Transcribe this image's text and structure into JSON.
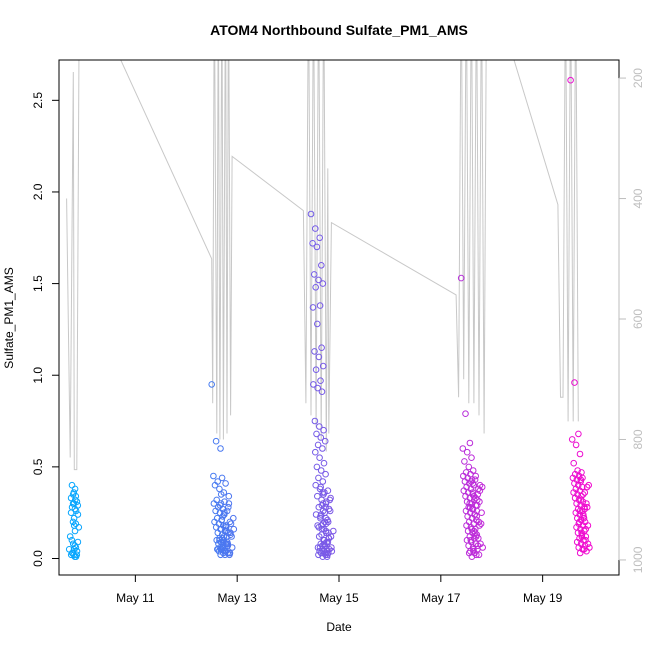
{
  "chart_data": {
    "type": "scatter",
    "title": "ATOM4 Northbound Sulfate_PM1_AMS",
    "xlabel": "Date",
    "ylabel": "Sulfate_PM1_AMS",
    "x_unit": "day of May",
    "xlim": [
      9.5,
      20.5
    ],
    "ylim": [
      -0.09,
      2.72
    ],
    "x_ticks": [
      {
        "value": 11,
        "label": "May 11"
      },
      {
        "value": 13,
        "label": "May 13"
      },
      {
        "value": 15,
        "label": "May 15"
      },
      {
        "value": 17,
        "label": "May 17"
      },
      {
        "value": 19,
        "label": "May 19"
      }
    ],
    "y_ticks": [
      {
        "value": 0.0,
        "label": "0.0"
      },
      {
        "value": 0.5,
        "label": "0.5"
      },
      {
        "value": 1.0,
        "label": "1.0"
      },
      {
        "value": 1.5,
        "label": "1.5"
      },
      {
        "value": 2.0,
        "label": "2.0"
      },
      {
        "value": 2.5,
        "label": "2.5"
      }
    ],
    "right_axis": {
      "description": "secondary reversed axis (gray trace)",
      "range_top": 170,
      "range_bottom": 1025,
      "ticks": [
        {
          "value": 200,
          "label": "200"
        },
        {
          "value": 400,
          "label": "400"
        },
        {
          "value": 600,
          "label": "600"
        },
        {
          "value": 800,
          "label": "800"
        },
        {
          "value": 1000,
          "label": "1000"
        }
      ],
      "color": "#bebebe"
    },
    "point_color_start": "#00aaff",
    "point_color_end": "#ff00cc",
    "clusters": [
      {
        "x_start": 9.7,
        "x_end": 9.9,
        "values": [
          0.05,
          0.02,
          0.08,
          0.12,
          0.03,
          0.18,
          0.25,
          0.3,
          0.32,
          0.28,
          0.22,
          0.33,
          0.35,
          0.38,
          0.4,
          0.3,
          0.26,
          0.2,
          0.15,
          0.1,
          0.05,
          0.01,
          0.03,
          0.07,
          0.04,
          0.02,
          0.06,
          0.09,
          0.27,
          0.31,
          0.36,
          0.34,
          0.24,
          0.01,
          0.02,
          0.17,
          0.19,
          0.29
        ]
      },
      {
        "x_start": 12.5,
        "x_end": 12.95,
        "values": [
          0.95,
          0.64,
          0.6,
          0.45,
          0.42,
          0.44,
          0.4,
          0.38,
          0.36,
          0.32,
          0.3,
          0.3,
          0.28,
          0.27,
          0.26,
          0.25,
          0.24,
          0.22,
          0.21,
          0.2,
          0.19,
          0.18,
          0.17,
          0.16,
          0.15,
          0.14,
          0.13,
          0.12,
          0.11,
          0.1,
          0.1,
          0.09,
          0.08,
          0.08,
          0.07,
          0.07,
          0.06,
          0.06,
          0.05,
          0.05,
          0.04,
          0.04,
          0.03,
          0.03,
          0.02,
          0.02,
          0.05,
          0.06,
          0.08,
          0.1,
          0.12,
          0.14,
          0.16,
          0.18,
          0.2,
          0.23,
          0.26,
          0.29,
          0.31,
          0.34,
          0.21,
          0.17,
          0.13,
          0.09,
          0.07,
          0.05,
          0.04,
          0.03,
          0.11,
          0.15,
          0.19,
          0.24,
          0.28,
          0.35,
          0.41,
          0.03,
          0.06,
          0.09,
          0.12,
          0.25,
          0.3,
          0.22,
          0.18,
          0.14,
          0.1,
          0.08,
          0.06,
          0.04,
          0.02,
          0.16
        ]
      },
      {
        "x_start": 14.45,
        "x_end": 14.9,
        "values": [
          1.88,
          1.8,
          1.75,
          1.72,
          1.7,
          1.6,
          1.55,
          1.52,
          1.5,
          1.48,
          1.38,
          1.37,
          1.28,
          1.15,
          1.13,
          1.1,
          1.05,
          1.03,
          0.97,
          0.95,
          0.93,
          0.91,
          0.75,
          0.72,
          0.7,
          0.68,
          0.66,
          0.64,
          0.62,
          0.6,
          0.58,
          0.55,
          0.52,
          0.5,
          0.48,
          0.46,
          0.44,
          0.42,
          0.4,
          0.38,
          0.36,
          0.34,
          0.32,
          0.3,
          0.28,
          0.26,
          0.24,
          0.22,
          0.2,
          0.18,
          0.16,
          0.14,
          0.12,
          0.1,
          0.09,
          0.08,
          0.07,
          0.06,
          0.05,
          0.05,
          0.04,
          0.04,
          0.03,
          0.03,
          0.02,
          0.02,
          0.01,
          0.01,
          0.06,
          0.08,
          0.11,
          0.13,
          0.15,
          0.17,
          0.19,
          0.21,
          0.23,
          0.25,
          0.27,
          0.29,
          0.31,
          0.33,
          0.35,
          0.37,
          0.39,
          0.03,
          0.05,
          0.07,
          0.09,
          0.12,
          0.16,
          0.2,
          0.24,
          0.28,
          0.32,
          0.36,
          0.04,
          0.06,
          0.1,
          0.14,
          0.18,
          0.22,
          0.26,
          0.3,
          0.02,
          0.04,
          0.07,
          0.11,
          0.15,
          0.19
        ]
      },
      {
        "x_start": 17.4,
        "x_end": 17.85,
        "values": [
          1.53,
          0.79,
          0.63,
          0.6,
          0.58,
          0.55,
          0.53,
          0.5,
          0.48,
          0.47,
          0.46,
          0.45,
          0.44,
          0.43,
          0.42,
          0.41,
          0.4,
          0.39,
          0.38,
          0.37,
          0.36,
          0.35,
          0.34,
          0.33,
          0.32,
          0.31,
          0.3,
          0.29,
          0.28,
          0.27,
          0.26,
          0.25,
          0.24,
          0.23,
          0.22,
          0.21,
          0.2,
          0.19,
          0.18,
          0.17,
          0.16,
          0.15,
          0.14,
          0.13,
          0.12,
          0.11,
          0.1,
          0.09,
          0.08,
          0.07,
          0.06,
          0.05,
          0.04,
          0.03,
          0.02,
          0.01,
          0.02,
          0.03,
          0.05,
          0.07,
          0.1,
          0.14,
          0.18,
          0.22,
          0.26,
          0.3,
          0.34,
          0.38,
          0.42,
          0.45,
          0.4,
          0.36,
          0.32,
          0.28,
          0.24,
          0.2,
          0.16,
          0.12,
          0.08,
          0.04,
          0.35,
          0.39,
          0.43,
          0.31,
          0.27,
          0.23,
          0.19,
          0.15,
          0.11,
          0.06,
          0.33,
          0.37,
          0.41,
          0.29,
          0.25
        ]
      },
      {
        "x_start": 19.55,
        "x_end": 19.95,
        "values": [
          2.61,
          0.96,
          0.68,
          0.65,
          0.62,
          0.57,
          0.52,
          0.48,
          0.47,
          0.46,
          0.45,
          0.44,
          0.43,
          0.42,
          0.41,
          0.4,
          0.39,
          0.38,
          0.37,
          0.36,
          0.35,
          0.34,
          0.33,
          0.32,
          0.31,
          0.3,
          0.29,
          0.28,
          0.27,
          0.26,
          0.25,
          0.24,
          0.23,
          0.22,
          0.21,
          0.2,
          0.19,
          0.18,
          0.17,
          0.16,
          0.15,
          0.14,
          0.13,
          0.12,
          0.11,
          0.1,
          0.09,
          0.08,
          0.07,
          0.06,
          0.05,
          0.04,
          0.03,
          0.05,
          0.08,
          0.12,
          0.16,
          0.2,
          0.24,
          0.28,
          0.32,
          0.36,
          0.4,
          0.44,
          0.3,
          0.26,
          0.22,
          0.18,
          0.14,
          0.1,
          0.06,
          0.35,
          0.39,
          0.43,
          0.27
        ]
      }
    ],
    "gray_trace": {
      "color": "#c8c8c8",
      "points": [
        [
          9.65,
          400
        ],
        [
          9.72,
          830
        ],
        [
          9.78,
          190
        ],
        [
          9.8,
          850
        ],
        [
          9.85,
          850
        ],
        [
          9.9,
          20
        ],
        [
          12.5,
          500
        ],
        [
          12.52,
          740
        ],
        [
          12.55,
          20
        ],
        [
          12.6,
          790
        ],
        [
          12.63,
          20
        ],
        [
          12.66,
          800
        ],
        [
          12.7,
          20
        ],
        [
          12.73,
          800
        ],
        [
          12.77,
          20
        ],
        [
          12.8,
          790
        ],
        [
          12.83,
          20
        ],
        [
          12.87,
          760
        ],
        [
          12.9,
          330
        ],
        [
          14.3,
          420
        ],
        [
          14.35,
          740
        ],
        [
          14.4,
          20
        ],
        [
          14.45,
          760
        ],
        [
          14.5,
          20
        ],
        [
          14.55,
          780
        ],
        [
          14.6,
          20
        ],
        [
          14.65,
          800
        ],
        [
          14.7,
          20
        ],
        [
          14.75,
          820
        ],
        [
          14.78,
          350
        ],
        [
          14.8,
          790
        ],
        [
          14.85,
          440
        ],
        [
          17.3,
          560
        ],
        [
          17.35,
          730
        ],
        [
          17.4,
          20
        ],
        [
          17.45,
          700
        ],
        [
          17.5,
          20
        ],
        [
          17.55,
          740
        ],
        [
          17.6,
          20
        ],
        [
          17.65,
          740
        ],
        [
          17.7,
          20
        ],
        [
          17.75,
          760
        ],
        [
          17.8,
          20
        ],
        [
          17.85,
          790
        ],
        [
          17.9,
          20
        ],
        [
          19.3,
          410
        ],
        [
          19.35,
          730
        ],
        [
          19.4,
          730
        ],
        [
          19.45,
          20
        ],
        [
          19.5,
          770
        ],
        [
          19.55,
          20
        ],
        [
          19.6,
          770
        ],
        [
          19.65,
          20
        ],
        [
          19.7,
          770
        ]
      ]
    }
  }
}
